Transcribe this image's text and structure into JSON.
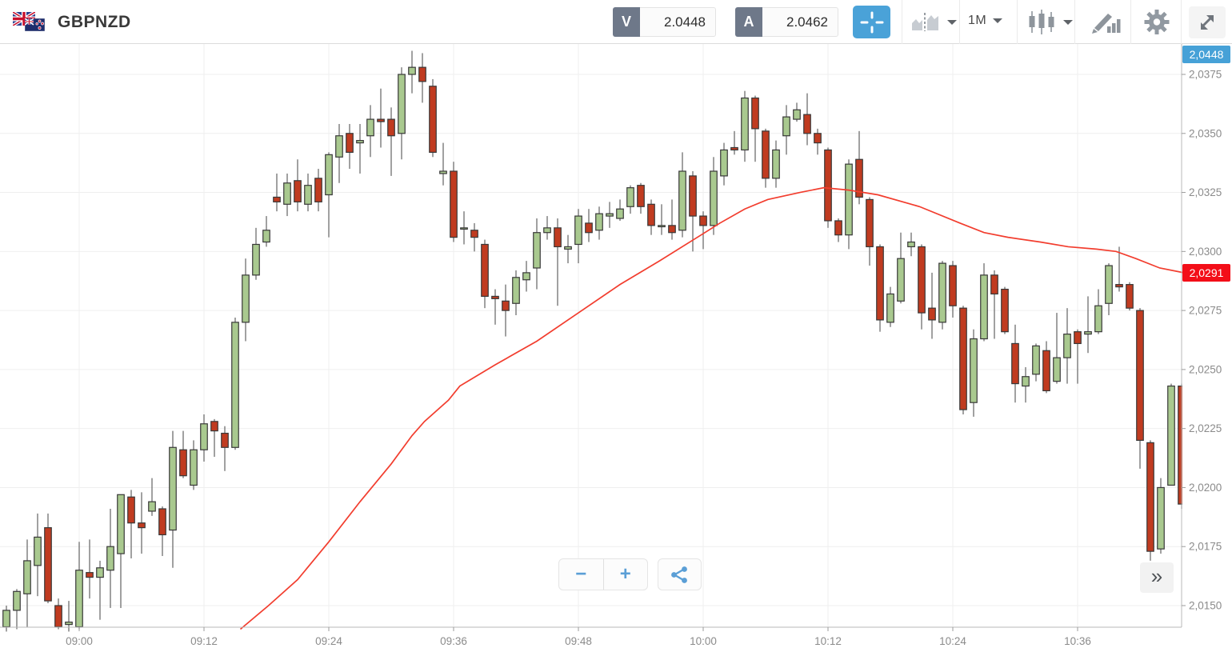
{
  "header": {
    "title": "GBPNZD",
    "sell_label": "V",
    "sell_value": "2.0448",
    "buy_label": "A",
    "buy_value": "2.0462",
    "timeframe": "1M"
  },
  "axis_badges": {
    "top_price": "2,0448",
    "ma_price": "2,0291"
  },
  "controls": {
    "zoom_out": "−",
    "zoom_in": "+",
    "collapse": "»"
  },
  "icons": {
    "crosshair": "crosshair",
    "compare": "compare-charts",
    "chart_type": "candlestick",
    "draw": "drawing-tools",
    "settings": "gear",
    "expand": "fullscreen",
    "share": "share"
  },
  "colors": {
    "accent_blue": "#4aa2d8",
    "badge_blue": "#46a1d7",
    "badge_red": "#f30e18",
    "candle_up": "#a9c98f",
    "candle_down": "#c03b20",
    "ma_red": "#f23d2e"
  },
  "chart_data": {
    "type": "candlestick",
    "symbol": "GBPNZD",
    "interval": "1m",
    "grid": true,
    "start_time": "08:53",
    "y_axis": {
      "range": [
        2.0141,
        2.0388
      ],
      "labels": [
        {
          "price": 2.0375,
          "label": "2,0375"
        },
        {
          "price": 2.035,
          "label": "2,0350"
        },
        {
          "price": 2.0325,
          "label": "2,0325"
        },
        {
          "price": 2.03,
          "label": "2,0300"
        },
        {
          "price": 2.0275,
          "label": "2,0275"
        },
        {
          "price": 2.025,
          "label": "2,0250"
        },
        {
          "price": 2.0225,
          "label": "2,0225"
        },
        {
          "price": 2.02,
          "label": "2,0200"
        },
        {
          "price": 2.0175,
          "label": "2,0175"
        },
        {
          "price": 2.015,
          "label": "2,0150"
        }
      ]
    },
    "x_axis": {
      "labels": [
        {
          "time": "09:00",
          "label": "09:00"
        },
        {
          "time": "09:12",
          "label": "09:12"
        },
        {
          "time": "09:24",
          "label": "09:24"
        },
        {
          "time": "09:36",
          "label": "09:36"
        },
        {
          "time": "09:48",
          "label": "09:48"
        },
        {
          "time": "10:00",
          "label": "10:00"
        },
        {
          "time": "10:12",
          "label": "10:12"
        },
        {
          "time": "10:24",
          "label": "10:24"
        },
        {
          "time": "10:36",
          "label": "10:36"
        }
      ]
    },
    "colors": {
      "up": "#a9c98f",
      "down": "#c03b20",
      "border": "#383838",
      "wick": "#6e6e6e"
    },
    "candles": [
      [
        "08:53",
        2.0141,
        2.015,
        2.0139,
        2.0148
      ],
      [
        "08:54",
        2.0148,
        2.0157,
        2.014,
        2.0156
      ],
      [
        "08:55",
        2.0155,
        2.0178,
        2.0141,
        2.0169
      ],
      [
        "08:56",
        2.0167,
        2.0189,
        2.0154,
        2.0179
      ],
      [
        "08:57",
        2.0183,
        2.0189,
        2.0151,
        2.0152
      ],
      [
        "08:58",
        2.015,
        2.0153,
        2.014,
        2.0141
      ],
      [
        "08:59",
        2.0142,
        2.0152,
        2.0139,
        2.0143
      ],
      [
        "09:00",
        2.0141,
        2.0177,
        2.014,
        2.0165
      ],
      [
        "09:01",
        2.0164,
        2.0178,
        2.0153,
        2.0162
      ],
      [
        "09:02",
        2.0162,
        2.0169,
        2.0144,
        2.0166
      ],
      [
        "09:03",
        2.0165,
        2.0191,
        2.0149,
        2.0175
      ],
      [
        "09:04",
        2.0172,
        2.0197,
        2.0149,
        2.0197
      ],
      [
        "09:05",
        2.0196,
        2.0199,
        2.017,
        2.0185
      ],
      [
        "09:06",
        2.0185,
        2.0198,
        2.0172,
        2.0183
      ],
      [
        "09:07",
        2.019,
        2.0204,
        2.0188,
        2.0194
      ],
      [
        "09:08",
        2.0191,
        2.0192,
        2.0171,
        2.018
      ],
      [
        "09:09",
        2.0182,
        2.0224,
        2.0166,
        2.0217
      ],
      [
        "09:10",
        2.0216,
        2.0224,
        2.0204,
        2.0205
      ],
      [
        "09:11",
        2.0201,
        2.022,
        2.0199,
        2.0216
      ],
      [
        "09:12",
        2.0216,
        2.0231,
        2.0211,
        2.0227
      ],
      [
        "09:13",
        2.0228,
        2.0229,
        2.0213,
        2.0224
      ],
      [
        "09:14",
        2.0223,
        2.0226,
        2.0207,
        2.0217
      ],
      [
        "09:15",
        2.0217,
        2.0272,
        2.0216,
        2.027
      ],
      [
        "09:16",
        2.027,
        2.0297,
        2.0262,
        2.029
      ],
      [
        "09:17",
        2.029,
        2.031,
        2.0288,
        2.0303
      ],
      [
        "09:18",
        2.0304,
        2.0315,
        2.0302,
        2.0309
      ],
      [
        "09:19",
        2.0323,
        2.0333,
        2.0317,
        2.0321
      ],
      [
        "09:20",
        2.032,
        2.0333,
        2.0315,
        2.0329
      ],
      [
        "09:21",
        2.033,
        2.0339,
        2.0317,
        2.0321
      ],
      [
        "09:22",
        2.032,
        2.0333,
        2.0317,
        2.0328
      ],
      [
        "09:23",
        2.0331,
        2.0335,
        2.0317,
        2.0321
      ],
      [
        "09:24",
        2.0324,
        2.0342,
        2.0306,
        2.0341
      ],
      [
        "09:25",
        2.034,
        2.0354,
        2.0329,
        2.0349
      ],
      [
        "09:26",
        2.035,
        2.0354,
        2.0335,
        2.0342
      ],
      [
        "09:27",
        2.0346,
        2.0354,
        2.0333,
        2.0347
      ],
      [
        "09:28",
        2.0349,
        2.0362,
        2.034,
        2.0356
      ],
      [
        "09:29",
        2.0356,
        2.0369,
        2.0344,
        2.0355
      ],
      [
        "09:30",
        2.0356,
        2.0361,
        2.0332,
        2.0349
      ],
      [
        "09:31",
        2.035,
        2.0378,
        2.0339,
        2.0375
      ],
      [
        "09:32",
        2.0375,
        2.0385,
        2.0367,
        2.0378
      ],
      [
        "09:33",
        2.0378,
        2.0384,
        2.0363,
        2.0372
      ],
      [
        "09:34",
        2.037,
        2.0373,
        2.034,
        2.0342
      ],
      [
        "09:35",
        2.0333,
        2.0346,
        2.0328,
        2.0334
      ],
      [
        "09:36",
        2.0334,
        2.0338,
        2.0304,
        2.0306
      ],
      [
        "09:37",
        2.031,
        2.0317,
        2.0303,
        2.031
      ],
      [
        "09:38",
        2.0309,
        2.0312,
        2.03,
        2.0306
      ],
      [
        "09:39",
        2.0303,
        2.0305,
        2.0276,
        2.0281
      ],
      [
        "09:40",
        2.0281,
        2.0284,
        2.0269,
        2.028
      ],
      [
        "09:41",
        2.0279,
        2.0286,
        2.0264,
        2.0275
      ],
      [
        "09:42",
        2.0278,
        2.0292,
        2.0273,
        2.0289
      ],
      [
        "09:43",
        2.0288,
        2.0296,
        2.0283,
        2.0291
      ],
      [
        "09:44",
        2.0293,
        2.0314,
        2.0284,
        2.0308
      ],
      [
        "09:45",
        2.0308,
        2.0315,
        2.0305,
        2.031
      ],
      [
        "09:46",
        2.031,
        2.0314,
        2.0277,
        2.0302
      ],
      [
        "09:47",
        2.0301,
        2.0307,
        2.0295,
        2.0302
      ],
      [
        "09:48",
        2.0303,
        2.0318,
        2.0295,
        2.0315
      ],
      [
        "09:49",
        2.0312,
        2.0318,
        2.0304,
        2.0308
      ],
      [
        "09:50",
        2.0309,
        2.0319,
        2.0305,
        2.0316
      ],
      [
        "09:51",
        2.0315,
        2.0321,
        2.031,
        2.0316
      ],
      [
        "09:52",
        2.0314,
        2.0322,
        2.0313,
        2.0318
      ],
      [
        "09:53",
        2.0319,
        2.0328,
        2.0316,
        2.0327
      ],
      [
        "09:54",
        2.0328,
        2.0329,
        2.0316,
        2.0319
      ],
      [
        "09:55",
        2.032,
        2.0322,
        2.0307,
        2.0311
      ],
      [
        "09:56",
        2.0311,
        2.032,
        2.0307,
        2.0311
      ],
      [
        "09:57",
        2.0311,
        2.0322,
        2.0305,
        2.0308
      ],
      [
        "09:58",
        2.0309,
        2.0342,
        2.0306,
        2.0334
      ],
      [
        "09:59",
        2.0332,
        2.0334,
        2.03,
        2.0315
      ],
      [
        "10:00",
        2.0315,
        2.0317,
        2.0301,
        2.0311
      ],
      [
        "10:01",
        2.0311,
        2.034,
        2.0307,
        2.0334
      ],
      [
        "10:02",
        2.0332,
        2.0346,
        2.0328,
        2.0343
      ],
      [
        "10:03",
        2.0344,
        2.0351,
        2.0341,
        2.0343
      ],
      [
        "10:04",
        2.0343,
        2.0368,
        2.0338,
        2.0365
      ],
      [
        "10:05",
        2.0365,
        2.0366,
        2.0338,
        2.0352
      ],
      [
        "10:06",
        2.0351,
        2.0352,
        2.0327,
        2.0331
      ],
      [
        "10:07",
        2.0331,
        2.0347,
        2.0327,
        2.0343
      ],
      [
        "10:08",
        2.0349,
        2.0362,
        2.0341,
        2.0357
      ],
      [
        "10:09",
        2.0356,
        2.0363,
        2.0355,
        2.036
      ],
      [
        "10:10",
        2.0358,
        2.0367,
        2.0345,
        2.035
      ],
      [
        "10:11",
        2.035,
        2.0352,
        2.0341,
        2.0346
      ],
      [
        "10:12",
        2.0343,
        2.0344,
        2.031,
        2.0313
      ],
      [
        "10:13",
        2.0313,
        2.0314,
        2.0304,
        2.0307
      ],
      [
        "10:14",
        2.0307,
        2.0339,
        2.0301,
        2.0337
      ],
      [
        "10:15",
        2.0339,
        2.0351,
        2.032,
        2.0323
      ],
      [
        "10:16",
        2.0322,
        2.0323,
        2.0294,
        2.0302
      ],
      [
        "10:17",
        2.0302,
        2.0303,
        2.0266,
        2.0271
      ],
      [
        "10:18",
        2.027,
        2.0285,
        2.0268,
        2.0282
      ],
      [
        "10:19",
        2.0279,
        2.0308,
        2.0278,
        2.0297
      ],
      [
        "10:20",
        2.0302,
        2.0308,
        2.0298,
        2.0304
      ],
      [
        "10:21",
        2.0302,
        2.0303,
        2.0267,
        2.0274
      ],
      [
        "10:22",
        2.0276,
        2.0291,
        2.0263,
        2.0271
      ],
      [
        "10:23",
        2.027,
        2.0296,
        2.0267,
        2.0295
      ],
      [
        "10:24",
        2.0294,
        2.0296,
        2.0272,
        2.0277
      ],
      [
        "10:25",
        2.0276,
        2.0277,
        2.0231,
        2.0233
      ],
      [
        "10:26",
        2.0236,
        2.0267,
        2.023,
        2.0263
      ],
      [
        "10:27",
        2.0263,
        2.0295,
        2.0262,
        2.029
      ],
      [
        "10:28",
        2.029,
        2.0292,
        2.0263,
        2.0282
      ],
      [
        "10:29",
        2.0284,
        2.0285,
        2.0265,
        2.0266
      ],
      [
        "10:30",
        2.0261,
        2.0269,
        2.0236,
        2.0244
      ],
      [
        "10:31",
        2.0243,
        2.0251,
        2.0236,
        2.0247
      ],
      [
        "10:32",
        2.0248,
        2.0261,
        2.0245,
        2.026
      ],
      [
        "10:33",
        2.0258,
        2.0262,
        2.024,
        2.0241
      ],
      [
        "10:34",
        2.0245,
        2.0274,
        2.0244,
        2.0255
      ],
      [
        "10:35",
        2.0255,
        2.0276,
        2.0244,
        2.0265
      ],
      [
        "10:36",
        2.0266,
        2.0267,
        2.0244,
        2.0261
      ],
      [
        "10:37",
        2.0265,
        2.0281,
        2.0257,
        2.0266
      ],
      [
        "10:38",
        2.0266,
        2.0284,
        2.0265,
        2.0277
      ],
      [
        "10:39",
        2.0278,
        2.0295,
        2.0273,
        2.0294
      ],
      [
        "10:40",
        2.0286,
        2.0302,
        2.0283,
        2.0285
      ],
      [
        "10:41",
        2.0286,
        2.0287,
        2.0275,
        2.0276
      ],
      [
        "10:42",
        2.0275,
        2.0276,
        2.0208,
        2.022
      ],
      [
        "10:43",
        2.0219,
        2.022,
        2.0169,
        2.0173
      ],
      [
        "10:44",
        2.0174,
        2.0204,
        2.0172,
        2.02
      ],
      [
        "10:45",
        2.0201,
        2.0244,
        2.0201,
        2.0243
      ],
      [
        "10:46",
        2.0243,
        2.0244,
        2.0191,
        2.0193
      ]
    ],
    "ma_line": {
      "name": "moving-average",
      "color": "#f23d2e",
      "points": [
        [
          22.5,
          2.014
        ],
        [
          25.2,
          2.015
        ],
        [
          28,
          2.0161
        ],
        [
          31,
          2.0177
        ],
        [
          34,
          2.0194
        ],
        [
          37,
          2.021
        ],
        [
          39,
          2.0222
        ],
        [
          40.2,
          2.0228
        ],
        [
          42.5,
          2.0237
        ],
        [
          43.6,
          2.0243
        ],
        [
          47,
          2.0252
        ],
        [
          51,
          2.0262
        ],
        [
          55,
          2.0274
        ],
        [
          59,
          2.0286
        ],
        [
          62.8,
          2.0296
        ],
        [
          66.8,
          2.0307
        ],
        [
          68.6,
          2.0312
        ],
        [
          71,
          2.0318
        ],
        [
          73.2,
          2.0322
        ],
        [
          76.3,
          2.0325
        ],
        [
          78.6,
          2.0327
        ],
        [
          81,
          2.0326
        ],
        [
          83.8,
          2.0324
        ],
        [
          87.8,
          2.0319
        ],
        [
          91.7,
          2.0312
        ],
        [
          94,
          2.0308
        ],
        [
          96.3,
          2.0306
        ],
        [
          99.4,
          2.0304
        ],
        [
          102.1,
          2.0302
        ],
        [
          104.8,
          2.0301
        ],
        [
          106.7,
          2.03
        ],
        [
          108.6,
          2.0297
        ],
        [
          110.9,
          2.0293
        ],
        [
          113.2,
          2.0291
        ]
      ]
    }
  }
}
